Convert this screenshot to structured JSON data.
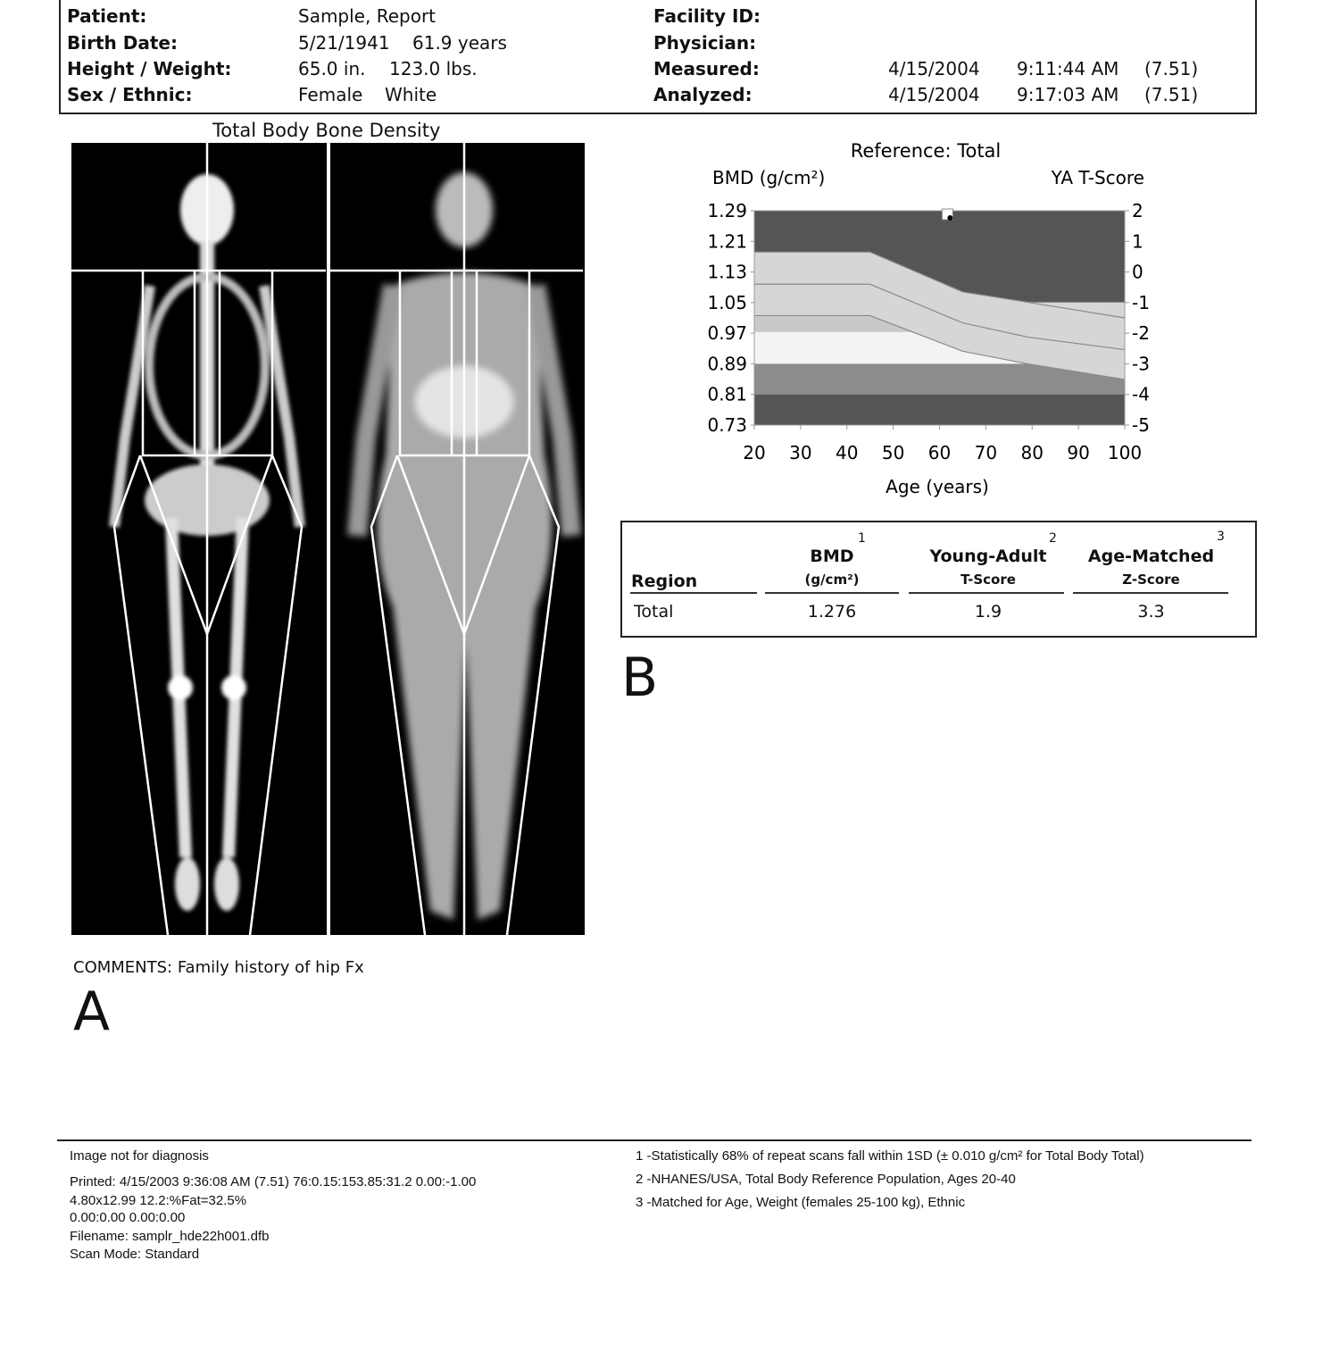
{
  "header": {
    "patient_label": "Patient:",
    "patient": "Sample, Report",
    "birth_label": "Birth Date:",
    "birth_date": "5/21/1941",
    "age": "61.9 years",
    "hw_label": "Height / Weight:",
    "height": "65.0 in.",
    "weight": "123.0 lbs.",
    "sex_label": "Sex / Ethnic:",
    "sex": "Female",
    "ethnic": "White",
    "facility_label": "Facility ID:",
    "physician_label": "Physician:",
    "measured_label": "Measured:",
    "measured_date": "4/15/2004",
    "measured_time": "9:11:44 AM",
    "measured_ver": "(7.51)",
    "analyzed_label": "Analyzed:",
    "analyzed_date": "4/15/2004",
    "analyzed_time": "9:17:03 AM",
    "analyzed_ver": "(7.51)"
  },
  "scan": {
    "title": "Total Body Bone Density",
    "comments": "COMMENTS: Family history of hip Fx",
    "panel_label": "A"
  },
  "chart_data": {
    "type": "area",
    "title": "Reference: Total",
    "ylabel": "BMD (g/cm²)",
    "y2label": "YA T-Score",
    "xlabel": "Age (years)",
    "xlim": [
      20,
      100
    ],
    "ylim": [
      0.73,
      1.29
    ],
    "x_ticks": [
      "20",
      "30",
      "40",
      "50",
      "60",
      "70",
      "80",
      "90",
      "100"
    ],
    "y_ticks": [
      "1.29",
      "1.21",
      "1.13",
      "1.05",
      "0.97",
      "0.89",
      "0.81",
      "0.73"
    ],
    "y2_ticks": [
      "2",
      "1",
      "0",
      "-1",
      "-2",
      "-3",
      "-4",
      "-5"
    ],
    "grid": false,
    "reference_curves": {
      "age": [
        20,
        45,
        65,
        79,
        100
      ],
      "upper": [
        1.182,
        1.182,
        1.078,
        1.051,
        1.051
      ],
      "mid": [
        1.098,
        1.098,
        0.997,
        0.96,
        0.927
      ],
      "lower": [
        1.016,
        1.016,
        0.923,
        0.89,
        0.849
      ]
    },
    "bands": {
      "white_top": 0.973,
      "white_bottom": 0.89,
      "osteoporosis_top": 0.81
    },
    "colors": {
      "dark": "#555555",
      "light": "#d6d6d6",
      "mid_light": "#c9c9c9",
      "white": "#f3f3f3",
      "medium": "#8c8c8c",
      "line": "#8a8a8a"
    },
    "patient_point": {
      "age": 61.9,
      "bmd": 1.276
    },
    "panel_label": "B"
  },
  "results_table": {
    "headers": {
      "region": "Region",
      "bmd": "BMD",
      "bmd_sub": "(g/cm²)",
      "bmd_note": "1",
      "ya": "Young-Adult",
      "ya_sub": "T-Score",
      "ya_note": "2",
      "am": "Age-Matched",
      "am_sub": "Z-Score",
      "am_note": "3"
    },
    "rows": [
      {
        "region": "Total",
        "bmd": "1.276",
        "t_score": "1.9",
        "z_score": "3.3"
      }
    ]
  },
  "footer": {
    "disclaimer": "Image not for diagnosis",
    "printed": "Printed: 4/15/2003 9:36:08 AM (7.51)  76:0.15:153.85:31.2 0.00:-1.00",
    "line2": "4.80x12.99 12.2:%Fat=32.5%",
    "line3": "0.00:0.00 0.00:0.00",
    "filename": "Filename: samplr_hde22h001.dfb",
    "scan_mode": "Scan Mode: Standard",
    "note1": "1 -Statistically 68% of repeat scans fall within 1SD (± 0.010 g/cm² for Total Body Total)",
    "note2": "2 -NHANES/USA, Total Body Reference Population, Ages 20-40",
    "note3": "3 -Matched for Age, Weight (females 25-100 kg), Ethnic"
  }
}
